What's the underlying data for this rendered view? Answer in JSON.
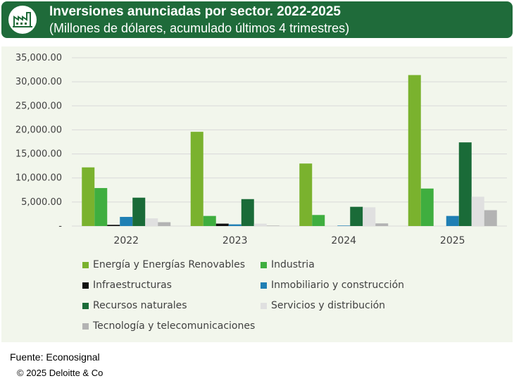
{
  "header": {
    "title": "Inversiones anunciadas por sector. 2022-2025",
    "subtitle": "(Millones de dólares, acumulado últimos 4 trimestres)",
    "icon": "factory-icon"
  },
  "footer": {
    "source": "Fuente: Econosignal",
    "copyright": "© 2025 Deloitte & Co"
  },
  "colors": {
    "header_bg": "#1f6b3a",
    "panel_bg": "#f2f6ec"
  },
  "chart_data": {
    "type": "bar",
    "categories": [
      "2022",
      "2023",
      "2024",
      "2025"
    ],
    "y_ticks": [
      "-",
      "5,000.00",
      "10,000.00",
      "15,000.00",
      "20,000.00",
      "25,000.00",
      "30,000.00",
      "35,000.00"
    ],
    "ylim": [
      0,
      35000
    ],
    "grid": true,
    "legend_position": "bottom",
    "series": [
      {
        "name": "Energía y Energías Renovables",
        "color": "#7ab22e",
        "values": [
          12200,
          19600,
          13000,
          31400
        ]
      },
      {
        "name": "Industria",
        "color": "#3fae3f",
        "values": [
          7900,
          2100,
          2300,
          7800
        ]
      },
      {
        "name": "Infraestructuras",
        "color": "#111111",
        "values": [
          250,
          500,
          0,
          0
        ]
      },
      {
        "name": "Inmobiliario y construcción",
        "color": "#1f7fb4",
        "values": [
          1900,
          350,
          100,
          2100
        ]
      },
      {
        "name": "Recursos naturales",
        "color": "#1a6b38",
        "values": [
          5900,
          5600,
          4000,
          17400
        ]
      },
      {
        "name": "Servicios y distribución",
        "color": "#e0e0e0",
        "values": [
          1600,
          500,
          3900,
          6100
        ]
      },
      {
        "name": "Tecnología y telecomunicaciones",
        "color": "#b3b3b3",
        "values": [
          800,
          100,
          550,
          3300
        ]
      }
    ]
  }
}
